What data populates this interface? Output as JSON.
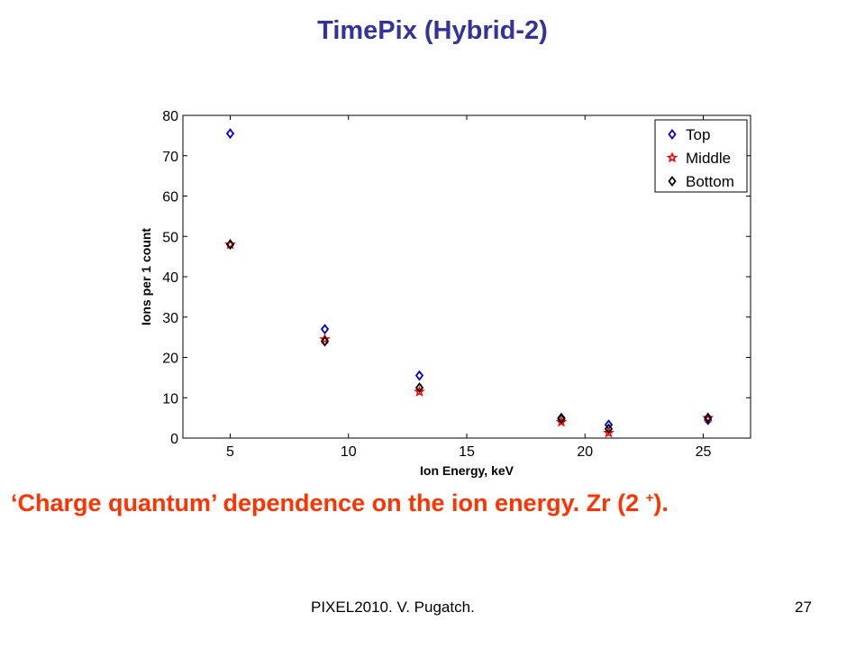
{
  "slide": {
    "title": "TimePix (Hybrid-2)",
    "caption_main": "‘Charge quantum’ dependence on the ion energy.  Zr (2 ",
    "caption_sup": "+",
    "caption_end": ").",
    "footer_left": "PIXEL2010. V. Pugatch.",
    "page_number": "27"
  },
  "chart_data": {
    "type": "scatter",
    "title": "",
    "xlabel": "Ion Energy, keV",
    "ylabel": "Ions per 1 count",
    "xlim": [
      3,
      27
    ],
    "ylim": [
      0,
      80
    ],
    "xticks": [
      5,
      10,
      15,
      20,
      25
    ],
    "yticks": [
      0,
      10,
      20,
      30,
      40,
      50,
      60,
      70,
      80
    ],
    "grid": false,
    "legend_position": "top-right",
    "series": [
      {
        "name": "Top",
        "marker": "diamond",
        "color": "#0000cc",
        "points": [
          [
            5,
            75.5
          ],
          [
            9,
            27
          ],
          [
            13,
            15.5
          ],
          [
            19,
            5
          ],
          [
            21,
            3.3
          ],
          [
            25.2,
            4.5
          ]
        ]
      },
      {
        "name": "Middle",
        "marker": "star",
        "color": "#ff0000",
        "points": [
          [
            5,
            48
          ],
          [
            9,
            24.5
          ],
          [
            13,
            11.5
          ],
          [
            19,
            4
          ],
          [
            21,
            1.3
          ],
          [
            25.2,
            5
          ]
        ]
      },
      {
        "name": "Bottom",
        "marker": "diamond",
        "color": "#000000",
        "points": [
          [
            5,
            48
          ],
          [
            9,
            24
          ],
          [
            13,
            12.5
          ],
          [
            19,
            4.8
          ],
          [
            21,
            2.3
          ],
          [
            25.2,
            5
          ]
        ]
      }
    ]
  }
}
